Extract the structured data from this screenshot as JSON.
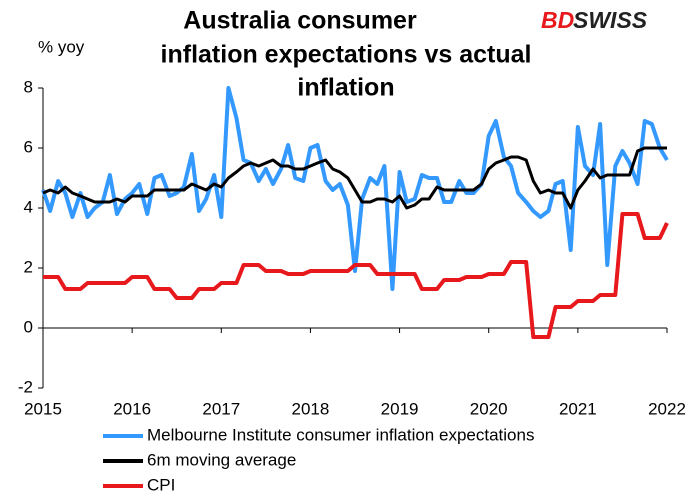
{
  "chart_data": {
    "type": "line",
    "title": [
      "Australia consumer",
      "inflation expectations vs actual",
      "inflation"
    ],
    "logo": [
      "BD",
      "SWISS"
    ],
    "y_label": "% yoy",
    "x": [
      2015.0,
      2015.08,
      2015.17,
      2015.25,
      2015.33,
      2015.42,
      2015.5,
      2015.58,
      2015.67,
      2015.75,
      2015.83,
      2015.92,
      2016.0,
      2016.08,
      2016.17,
      2016.25,
      2016.33,
      2016.42,
      2016.5,
      2016.58,
      2016.67,
      2016.75,
      2016.83,
      2016.92,
      2017.0,
      2017.08,
      2017.17,
      2017.25,
      2017.33,
      2017.42,
      2017.5,
      2017.58,
      2017.67,
      2017.75,
      2017.83,
      2017.92,
      2018.0,
      2018.08,
      2018.17,
      2018.25,
      2018.33,
      2018.42,
      2018.5,
      2018.58,
      2018.67,
      2018.75,
      2018.83,
      2018.92,
      2019.0,
      2019.08,
      2019.17,
      2019.25,
      2019.33,
      2019.42,
      2019.5,
      2019.58,
      2019.67,
      2019.75,
      2019.83,
      2019.92,
      2020.0,
      2020.08,
      2020.17,
      2020.25,
      2020.33,
      2020.42,
      2020.5,
      2020.58,
      2020.67,
      2020.75,
      2020.83,
      2020.92,
      2021.0,
      2021.08,
      2021.17,
      2021.25,
      2021.33,
      2021.42,
      2021.5,
      2021.58,
      2021.67,
      2021.75,
      2021.83,
      2021.92,
      2022.0
    ],
    "series": [
      {
        "name": "Melbourne Institute consumer inflation expectations",
        "color": "#3399ff",
        "values": [
          4.6,
          3.9,
          4.9,
          4.5,
          3.7,
          4.5,
          3.7,
          4.0,
          4.2,
          5.1,
          3.8,
          4.3,
          4.5,
          4.8,
          3.8,
          5.0,
          5.1,
          4.4,
          4.5,
          4.7,
          5.8,
          3.9,
          4.3,
          5.1,
          3.7,
          8.0,
          7.0,
          5.6,
          5.5,
          4.9,
          5.3,
          4.8,
          5.3,
          6.1,
          5.0,
          4.9,
          6.0,
          6.1,
          4.9,
          4.6,
          4.8,
          4.1,
          1.9,
          4.3,
          5.0,
          4.8,
          5.4,
          1.3,
          5.2,
          4.2,
          4.3,
          5.1,
          5.0,
          5.0,
          4.2,
          4.2,
          4.9,
          4.5,
          4.5,
          4.8,
          6.4,
          6.9,
          5.7,
          5.4,
          4.5,
          4.2,
          3.9,
          3.7,
          3.9,
          4.8,
          4.9,
          2.6,
          6.7,
          5.4,
          5.1,
          6.8,
          2.1,
          5.4,
          5.9,
          5.5,
          4.8,
          6.9,
          6.8,
          6.0,
          5.6
        ]
      },
      {
        "name": "6m moving average",
        "color": "#000000",
        "values": [
          4.5,
          4.6,
          4.5,
          4.7,
          4.5,
          4.4,
          4.3,
          4.2,
          4.2,
          4.2,
          4.3,
          4.2,
          4.4,
          4.4,
          4.4,
          4.6,
          4.6,
          4.6,
          4.6,
          4.6,
          4.8,
          4.7,
          4.6,
          4.8,
          4.7,
          5.0,
          5.2,
          5.4,
          5.5,
          5.4,
          5.5,
          5.6,
          5.4,
          5.4,
          5.3,
          5.3,
          5.4,
          5.5,
          5.6,
          5.3,
          5.2,
          5.0,
          4.6,
          4.2,
          4.2,
          4.3,
          4.3,
          4.2,
          4.4,
          4.0,
          4.1,
          4.3,
          4.3,
          4.7,
          4.6,
          4.6,
          4.6,
          4.6,
          4.6,
          4.8,
          5.3,
          5.5,
          5.6,
          5.7,
          5.7,
          5.6,
          4.9,
          4.5,
          4.6,
          4.5,
          4.5,
          4.0,
          4.6,
          4.9,
          5.3,
          5.0,
          5.1,
          5.1,
          5.1,
          5.1,
          5.9,
          6.0,
          6.0,
          6.0,
          6.0
        ]
      },
      {
        "name": "CPI",
        "color": "#e8191c",
        "values": [
          1.7,
          1.7,
          1.7,
          1.3,
          1.3,
          1.3,
          1.5,
          1.5,
          1.5,
          1.5,
          1.5,
          1.5,
          1.7,
          1.7,
          1.7,
          1.3,
          1.3,
          1.3,
          1.0,
          1.0,
          1.0,
          1.3,
          1.3,
          1.3,
          1.5,
          1.5,
          1.5,
          2.1,
          2.1,
          2.1,
          1.9,
          1.9,
          1.9,
          1.8,
          1.8,
          1.8,
          1.9,
          1.9,
          1.9,
          1.9,
          1.9,
          1.9,
          2.1,
          2.1,
          2.1,
          1.8,
          1.8,
          1.8,
          1.8,
          1.8,
          1.8,
          1.3,
          1.3,
          1.3,
          1.6,
          1.6,
          1.6,
          1.7,
          1.7,
          1.7,
          1.8,
          1.8,
          1.8,
          2.2,
          2.2,
          2.2,
          -0.3,
          -0.3,
          -0.3,
          0.7,
          0.7,
          0.7,
          0.9,
          0.9,
          0.9,
          1.1,
          1.1,
          1.1,
          3.8,
          3.8,
          3.8,
          3.0,
          3.0,
          3.0,
          3.5
        ]
      }
    ],
    "xlim": [
      2015,
      2022
    ],
    "xticks": [
      2015,
      2016,
      2017,
      2018,
      2019,
      2020,
      2021,
      2022
    ],
    "ylim": [
      -2,
      8
    ],
    "yticks": [
      -2,
      0,
      2,
      4,
      6,
      8
    ],
    "grid": false,
    "legend": "bottom"
  }
}
